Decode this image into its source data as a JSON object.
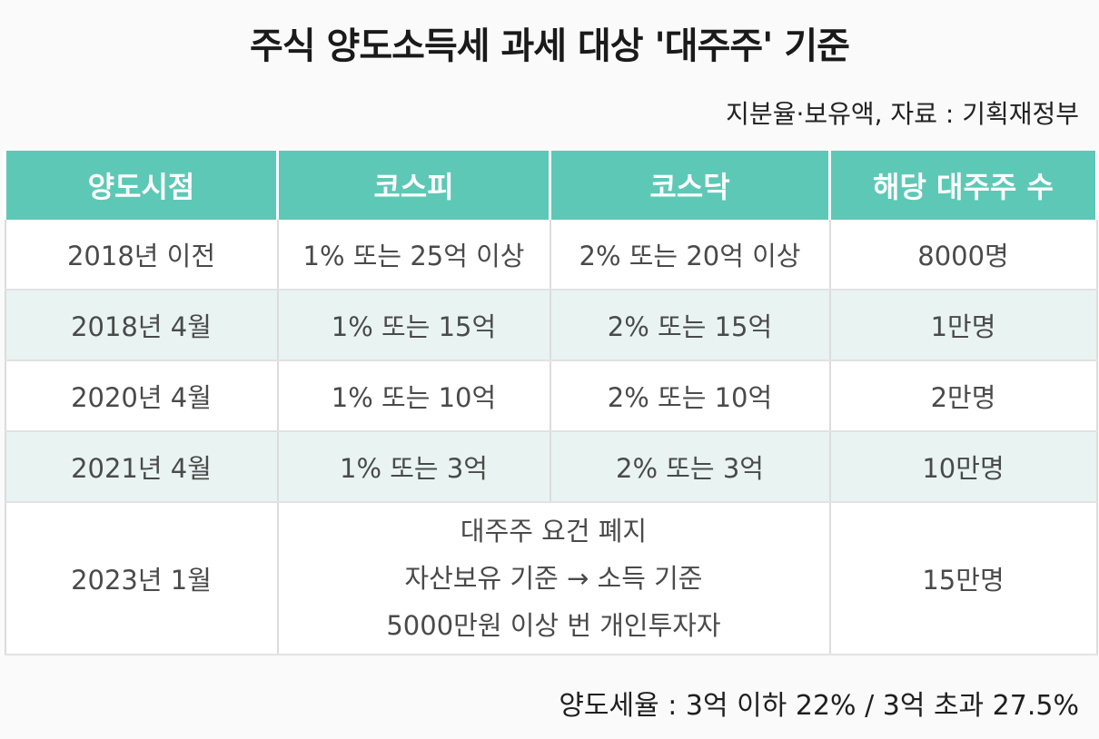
{
  "title": "주식 양도소득세 과세 대상 '대주주' 기준",
  "source_note": "지분율·보유액, 자료 : 기획재정부",
  "table": {
    "headers": [
      "양도시점",
      "코스피",
      "코스닥",
      "해당 대주주 수"
    ],
    "rows": [
      {
        "time": "2018년 이전",
        "kospi": "1% 또는 25억 이상",
        "kosdaq": "2% 또는 20억 이상",
        "count": "8000명"
      },
      {
        "time": "2018년 4월",
        "kospi": "1% 또는 15억",
        "kosdaq": "2% 또는 15억",
        "count": "1만명"
      },
      {
        "time": "2020년 4월",
        "kospi": "1% 또는 10억",
        "kosdaq": "2% 또는 10억",
        "count": "2만명"
      },
      {
        "time": "2021년 4월",
        "kospi": "1% 또는 3억",
        "kosdaq": "2% 또는 3억",
        "count": "10만명"
      }
    ],
    "last_row": {
      "time": "2023년 1월",
      "lines": [
        "대주주 요건 폐지",
        "자산보유 기준 → 소득 기준",
        "5000만원 이상 번 개인투자자"
      ],
      "count": "15만명"
    }
  },
  "footer_note": "양도세율 : 3억 이하 22% / 3억 초과 27.5%"
}
